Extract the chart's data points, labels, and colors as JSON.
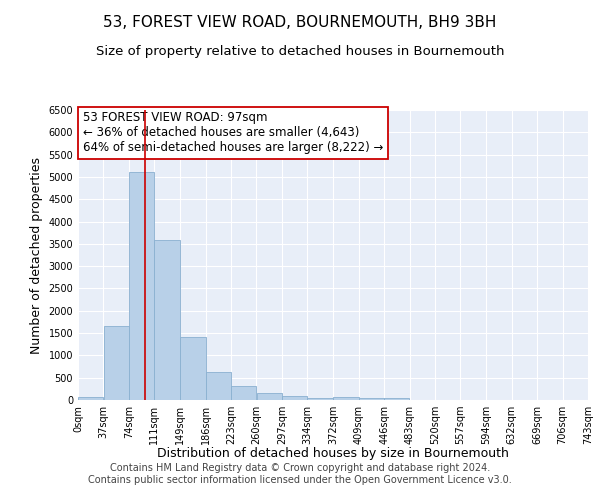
{
  "title": "53, FOREST VIEW ROAD, BOURNEMOUTH, BH9 3BH",
  "subtitle": "Size of property relative to detached houses in Bournemouth",
  "xlabel": "Distribution of detached houses by size in Bournemouth",
  "ylabel": "Number of detached properties",
  "footnote1": "Contains HM Land Registry data © Crown copyright and database right 2024.",
  "footnote2": "Contains public sector information licensed under the Open Government Licence v3.0.",
  "annotation_title": "53 FOREST VIEW ROAD: 97sqm",
  "annotation_line1": "← 36% of detached houses are smaller (4,643)",
  "annotation_line2": "64% of semi-detached houses are larger (8,222) →",
  "bin_edges": [
    0,
    37,
    74,
    111,
    149,
    186,
    223,
    260,
    297,
    334,
    372,
    409,
    446,
    483,
    520,
    557,
    594,
    632,
    669,
    706,
    743
  ],
  "bar_heights": [
    75,
    1650,
    5100,
    3580,
    1420,
    620,
    305,
    155,
    90,
    55,
    70,
    35,
    35,
    5,
    5,
    5,
    3,
    2,
    2,
    2
  ],
  "bar_color": "#b8d0e8",
  "bar_edge_color": "#8ab0d0",
  "property_line_x": 97,
  "property_line_color": "#cc0000",
  "ylim": [
    0,
    6500
  ],
  "xlim": [
    0,
    743
  ],
  "annotation_box_color": "#ffffff",
  "annotation_box_edge": "#cc0000",
  "bg_color": "#e8eef8",
  "grid_color": "#ffffff",
  "fig_bg_color": "#ffffff",
  "title_fontsize": 11,
  "subtitle_fontsize": 9.5,
  "axis_label_fontsize": 9,
  "tick_label_fontsize": 7,
  "annotation_fontsize": 8.5,
  "footnote_fontsize": 7
}
